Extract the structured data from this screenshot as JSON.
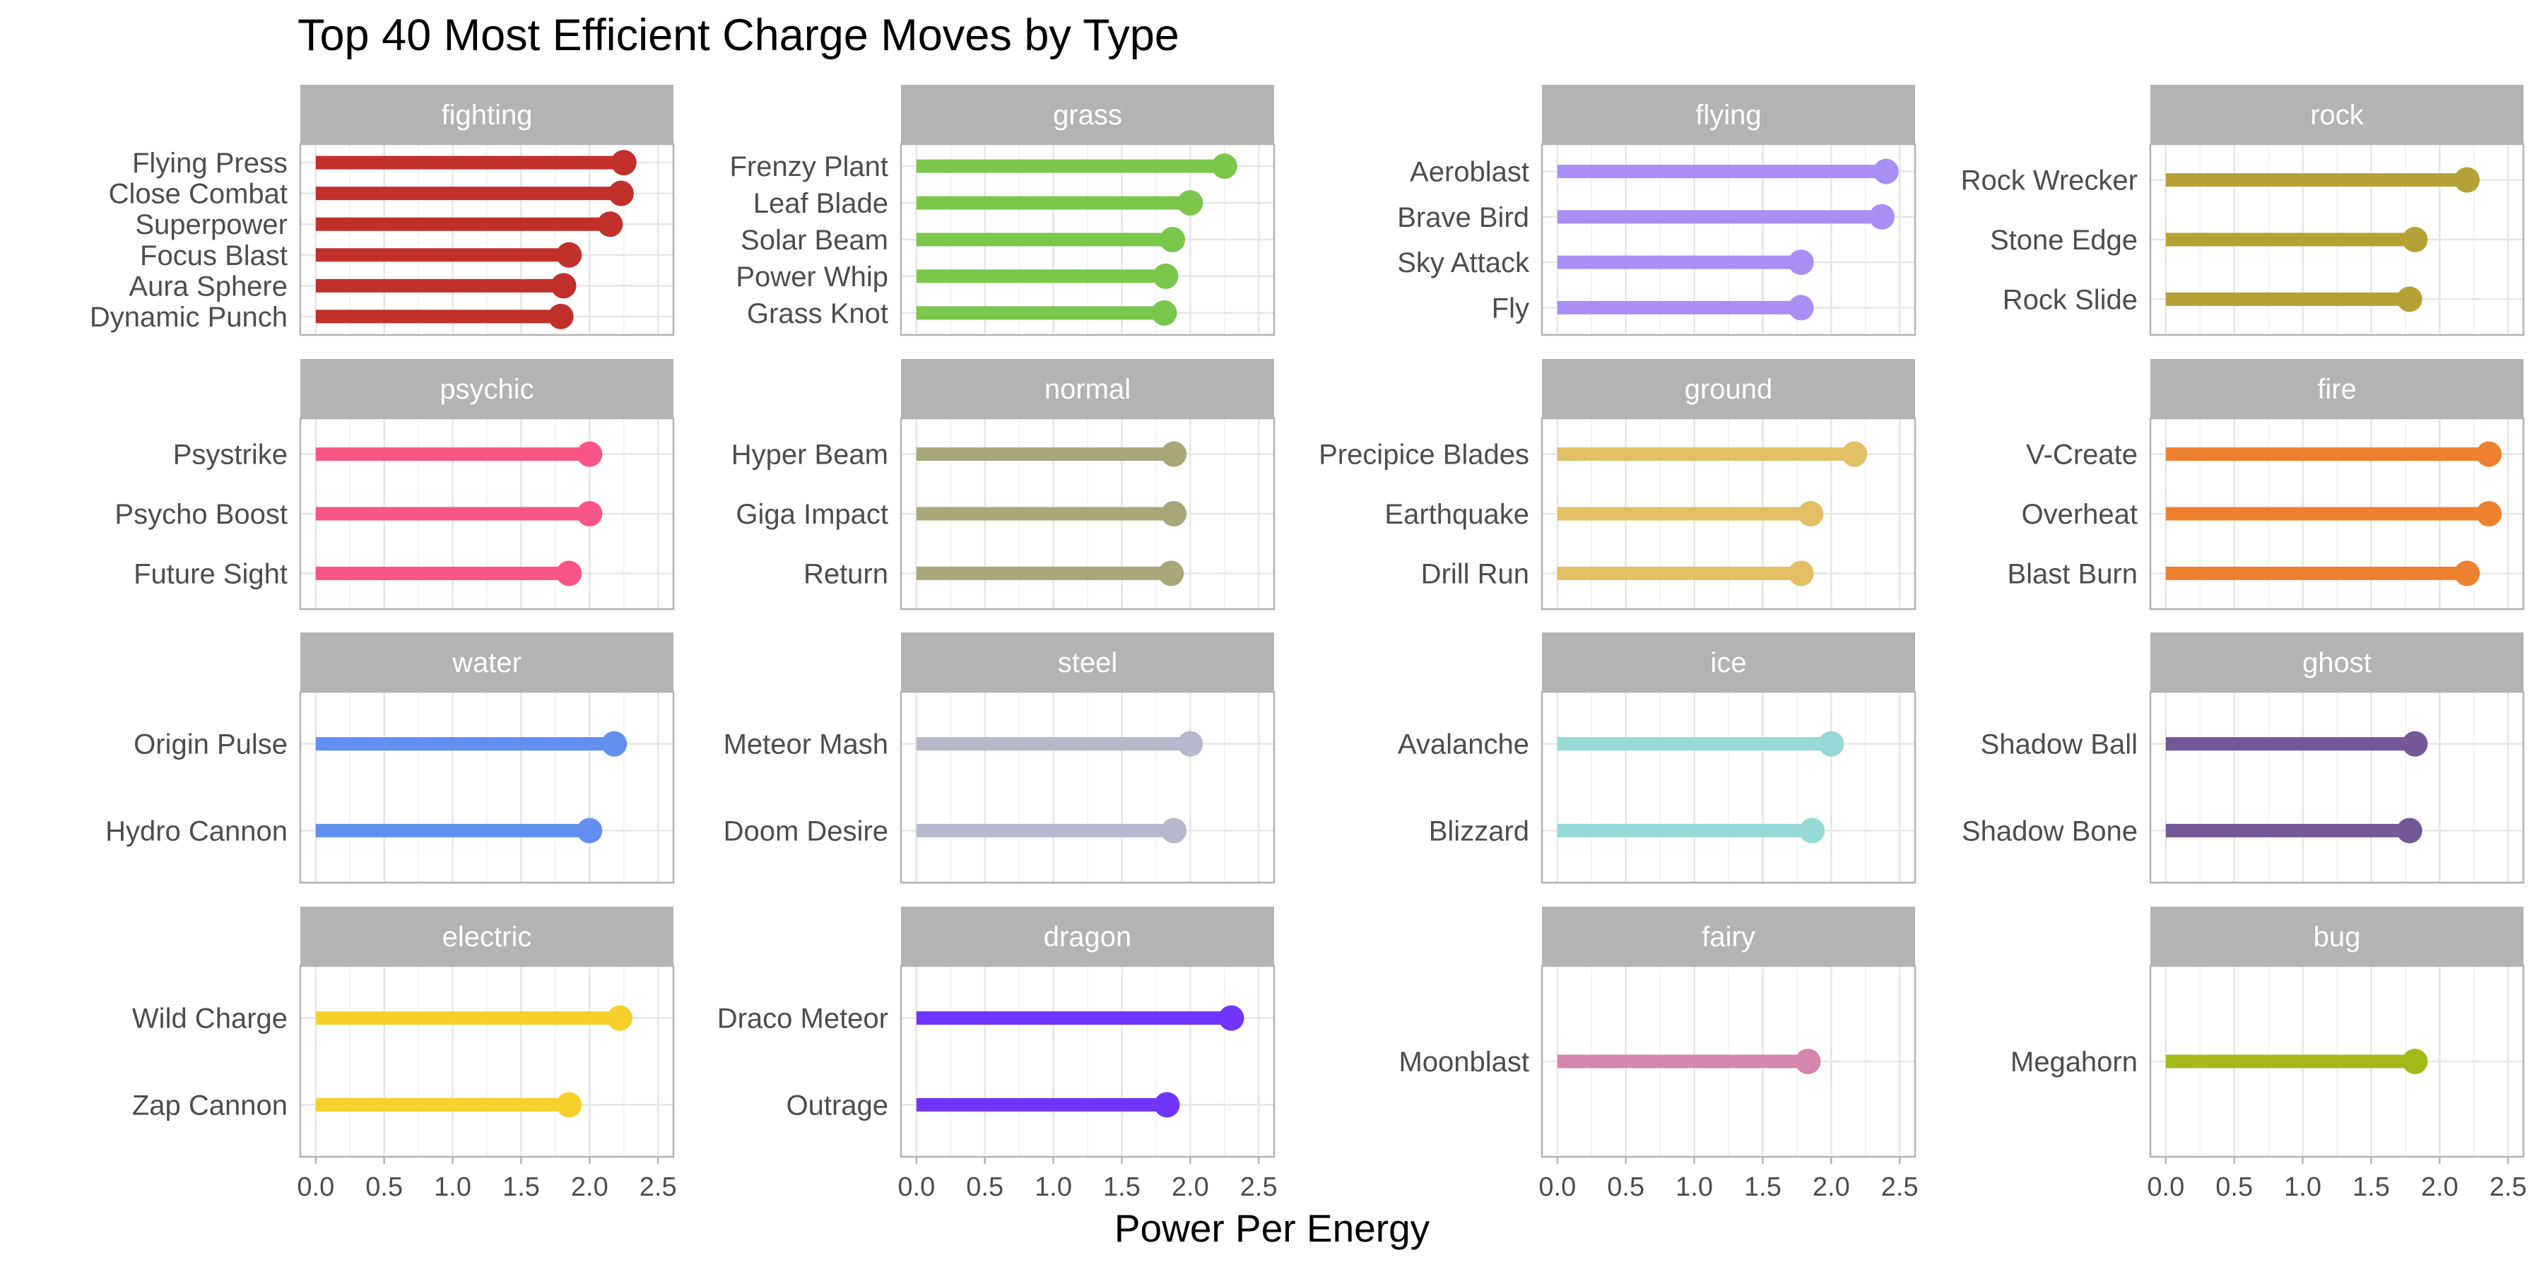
{
  "chart_data": {
    "type": "bar",
    "title": "Top 40 Most Efficient Charge Moves by Type",
    "xlabel": "Power Per Energy",
    "xlim": [
      0,
      2.5
    ],
    "xticks": [
      "0.0",
      "0.5",
      "1.0",
      "1.5",
      "2.0",
      "2.5"
    ],
    "grid": true,
    "legend": "none",
    "panels": [
      {
        "type": "fighting",
        "color": "#c2302c",
        "moves": [
          "Flying Press",
          "Close Combat",
          "Superpower",
          "Focus Blast",
          "Aura Sphere",
          "Dynamic Punch"
        ],
        "values": [
          2.25,
          2.23,
          2.15,
          1.85,
          1.81,
          1.79
        ]
      },
      {
        "type": "grass",
        "color": "#7ac74c",
        "moves": [
          "Frenzy Plant",
          "Leaf Blade",
          "Solar Beam",
          "Power Whip",
          "Grass Knot"
        ],
        "values": [
          2.25,
          2.0,
          1.87,
          1.82,
          1.81
        ]
      },
      {
        "type": "flying",
        "color": "#a98ff3",
        "moves": [
          "Aeroblast",
          "Brave Bird",
          "Sky Attack",
          "Fly"
        ],
        "values": [
          2.4,
          2.37,
          1.78,
          1.78
        ]
      },
      {
        "type": "rock",
        "color": "#b6a136",
        "moves": [
          "Rock Wrecker",
          "Stone Edge",
          "Rock Slide"
        ],
        "values": [
          2.2,
          1.82,
          1.78
        ]
      },
      {
        "type": "psychic",
        "color": "#f95587",
        "moves": [
          "Psystrike",
          "Psycho Boost",
          "Future Sight"
        ],
        "values": [
          2.0,
          2.0,
          1.85
        ]
      },
      {
        "type": "normal",
        "color": "#a8a77a",
        "moves": [
          "Hyper Beam",
          "Giga Impact",
          "Return"
        ],
        "values": [
          1.88,
          1.88,
          1.86
        ]
      },
      {
        "type": "ground",
        "color": "#e2bf65",
        "moves": [
          "Precipice Blades",
          "Earthquake",
          "Drill Run"
        ],
        "values": [
          2.17,
          1.85,
          1.78
        ]
      },
      {
        "type": "fire",
        "color": "#ee8130",
        "moves": [
          "V-Create",
          "Overheat",
          "Blast Burn"
        ],
        "values": [
          2.36,
          2.36,
          2.2
        ]
      },
      {
        "type": "water",
        "color": "#6390f0",
        "moves": [
          "Origin Pulse",
          "Hydro Cannon"
        ],
        "values": [
          2.18,
          2.0
        ]
      },
      {
        "type": "steel",
        "color": "#b7b7ce",
        "moves": [
          "Meteor Mash",
          "Doom Desire"
        ],
        "values": [
          2.0,
          1.88
        ]
      },
      {
        "type": "ice",
        "color": "#96d9d6",
        "moves": [
          "Avalanche",
          "Blizzard"
        ],
        "values": [
          2.0,
          1.86
        ]
      },
      {
        "type": "ghost",
        "color": "#735797",
        "moves": [
          "Shadow Ball",
          "Shadow Bone"
        ],
        "values": [
          1.82,
          1.78
        ]
      },
      {
        "type": "electric",
        "color": "#f7d02c",
        "moves": [
          "Wild Charge",
          "Zap Cannon"
        ],
        "values": [
          2.22,
          1.85
        ]
      },
      {
        "type": "dragon",
        "color": "#6f35fc",
        "moves": [
          "Draco Meteor",
          "Outrage"
        ],
        "values": [
          2.3,
          1.83
        ]
      },
      {
        "type": "fairy",
        "color": "#d685ad",
        "moves": [
          "Moonblast"
        ],
        "values": [
          1.83
        ]
      },
      {
        "type": "bug",
        "color": "#a6b91a",
        "moves": [
          "Megahorn"
        ],
        "values": [
          1.82
        ]
      }
    ]
  }
}
